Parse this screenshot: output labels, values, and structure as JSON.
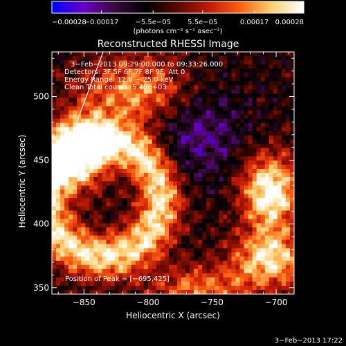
{
  "colors": {
    "background": "#000000",
    "text": "#ffffff",
    "colormap_stops": [
      "#0000ff",
      "#6a00c8",
      "#3a0a3a",
      "#000000",
      "#5a0a00",
      "#c01808",
      "#ff6010",
      "#ffd070",
      "#ffffff"
    ]
  },
  "chart_data": {
    "type": "heatmap",
    "title": "Reconstructed RHESSI Image",
    "xlabel": "Heliocentric X (arcsec)",
    "ylabel": "Heliocentric Y (arcsec)",
    "xlim": [
      -875,
      -686
    ],
    "ylim": [
      345,
      535
    ],
    "x_ticks": [
      -850,
      -800,
      -750,
      -700
    ],
    "y_ticks": [
      350,
      400,
      450,
      500
    ],
    "x_tick_labels": [
      "−850",
      "−800",
      "−750",
      "−700"
    ],
    "y_tick_labels": [
      "350",
      "400",
      "450",
      "500"
    ],
    "colorbar": {
      "range": [
        -0.00028,
        0.00028
      ],
      "ticks": [
        -0.00028,
        -0.00017,
        -5.5e-05,
        5.5e-05,
        0.00017,
        0.00028
      ],
      "tick_labels": [
        "−0.00028",
        "−0.00017",
        "−5.5e−05",
        "5.5e−05",
        "0.00017",
        "0.00028"
      ],
      "unit_label": "(photons cm⁻² s⁻¹ asec⁻²)"
    },
    "annotations": [
      "3−Feb−2013 09:29:00.000 to 09:33:26.000",
      "Detectors: 3F 5F 6F 7F 8F 9F, Att 0",
      "Energy Range: 12.0 − 25.0 keV",
      "Clean     Total counts: 5.40E+03"
    ],
    "peak_label": "Position of Peak = [−695,425]",
    "peak": [
      -695,
      425
    ],
    "limb_line": {
      "x": [
        -875,
        -835
      ],
      "y": [
        428,
        535
      ]
    },
    "timestamp": "3−Feb−2013 17:22",
    "grid": false
  }
}
